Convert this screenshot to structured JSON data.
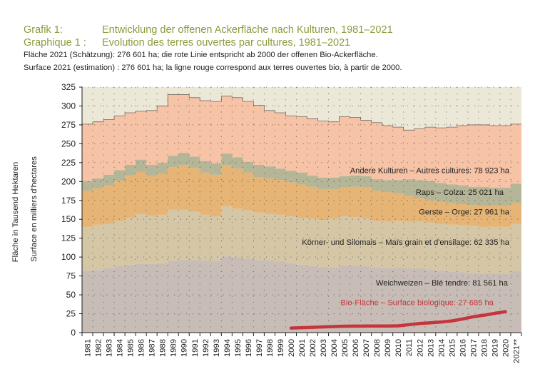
{
  "header": {
    "title_de_label": "Grafik 1:",
    "title_de": "Entwicklung der offenen Ackerfläche nach Kulturen, 1981–2021",
    "title_fr_label": "Graphique 1 :",
    "title_fr": "Evolution des terres ouvertes par cultures, 1981–2021",
    "subtitle_de": "Fläche 2021 (Schätzung): 276 601 ha; die rote Linie entspricht ab 2000 der offenen Bio-Ackerfläche.",
    "subtitle_fr": "Surface 2021 (estimation) : 276 601 ha; la ligne rouge correspond aux terres ouvertes bio, à partir de 2000."
  },
  "colors": {
    "weichweizen": "#c7bdb6",
    "koernermais": "#d5c7a6",
    "gerste": "#e6b474",
    "raps": "#b5b597",
    "andere": "#f6c3a6",
    "bio": "#c5353c",
    "plot_bg": "#ece8d7",
    "title": "#8e9a3c",
    "bio_label": "#c5353c"
  },
  "chart_data": {
    "type": "area",
    "title": "Entwicklung der offenen Ackerfläche nach Kulturen, 1981–2021",
    "ylabel_de": "Fläche in Tausend Hektaren",
    "ylabel_fr": "Surface en milliers d'hectares",
    "ylim": [
      0,
      325
    ],
    "yticks": [
      0,
      25,
      50,
      75,
      100,
      125,
      150,
      175,
      200,
      225,
      250,
      275,
      300,
      325
    ],
    "xlabels": [
      "1981",
      "1982",
      "1983",
      "1984",
      "1985",
      "1986",
      "1987",
      "1988",
      "1989",
      "1990",
      "1991",
      "1992",
      "1993",
      "1994",
      "1995",
      "1996",
      "1997",
      "1998",
      "1999",
      "2000",
      "2001",
      "2002",
      "2003",
      "2004",
      "2005",
      "2006",
      "2007",
      "2008",
      "2009",
      "2010",
      "2011",
      "2012",
      "2013",
      "2014",
      "2015",
      "2016",
      "2017",
      "2018",
      "2019",
      "2020",
      "2021**"
    ],
    "grid": true,
    "series": [
      {
        "name": "Weichweizen – Blé tendre: 81 561 ha",
        "key": "weichweizen",
        "values": [
          82,
          83,
          85,
          88,
          90,
          91,
          91,
          92,
          95,
          96,
          96,
          95,
          95,
          101,
          100,
          98,
          96,
          95,
          94,
          92,
          90,
          88,
          87,
          86,
          89,
          89,
          88,
          86,
          85,
          86,
          85,
          85,
          84,
          82,
          81,
          80,
          79,
          78,
          78,
          78,
          82
        ]
      },
      {
        "name": "Körner- und Silomais – Maïs grain et d'ensilage: 62 335 ha",
        "key": "koernermais",
        "values": [
          58,
          60,
          59,
          60,
          62,
          66,
          64,
          64,
          68,
          67,
          64,
          61,
          59,
          66,
          64,
          64,
          63,
          62,
          62,
          62,
          62,
          63,
          62,
          65,
          65,
          64,
          63,
          62,
          62,
          62,
          62,
          62,
          62,
          62,
          62,
          62,
          62,
          62,
          62,
          62,
          62
        ]
      },
      {
        "name": "Gerste – Orge: 27 961 ha",
        "key": "gerste",
        "values": [
          48,
          48,
          51,
          53,
          56,
          56,
          52,
          54,
          56,
          59,
          58,
          56,
          55,
          55,
          53,
          50,
          47,
          47,
          46,
          45,
          44,
          42,
          41,
          39,
          38,
          40,
          41,
          40,
          39,
          36,
          34,
          31,
          29,
          29,
          29,
          28,
          28,
          28,
          28,
          28,
          28
        ]
      },
      {
        "name": "Raps – Colza: 25 021 ha",
        "key": "raps",
        "values": [
          13,
          13,
          14,
          14,
          14,
          16,
          15,
          15,
          15,
          16,
          15,
          15,
          15,
          15,
          15,
          14,
          16,
          16,
          15,
          15,
          16,
          15,
          15,
          15,
          15,
          15,
          15,
          15,
          16,
          18,
          22,
          24,
          26,
          25,
          24,
          25,
          24,
          25,
          24,
          24,
          25
        ]
      },
      {
        "name": "Andere Kulturen – Autres cultures: 78 923 ha",
        "key": "andere",
        "values": [
          75,
          75,
          73,
          72,
          69,
          64,
          72,
          75,
          81,
          77,
          78,
          80,
          82,
          76,
          79,
          80,
          79,
          74,
          74,
          73,
          74,
          75,
          75,
          74,
          79,
          77,
          74,
          75,
          72,
          70,
          65,
          68,
          71,
          73,
          76,
          79,
          82,
          82,
          82,
          82,
          79
        ]
      },
      {
        "name": "Bio-Fläche – Surface biologique: 27 685 ha",
        "key": "bio",
        "start": "2000",
        "values": [
          6,
          6.5,
          7,
          7.5,
          8,
          8.5,
          8.6,
          8.7,
          8.7,
          8.8,
          9,
          10.5,
          12,
          13,
          14,
          15.5,
          18,
          21,
          23,
          25.5,
          27.7
        ]
      }
    ],
    "labels": {
      "andere": "Andere Kulturen  –  Autres cultures: 78 923 ha",
      "raps": "Raps  –  Colza: 25 021 ha",
      "gerste": "Gerste  –  Orge: 27 961 ha",
      "koernermais": "Körner- und Silomais  –  Maïs grain et d'ensilage: 62 335 ha",
      "weichweizen": "Weichweizen  –  Blé tendre: 81 561 ha",
      "bio": "Bio-Fläche  –  Surface biologique: 27 685 ha"
    }
  }
}
